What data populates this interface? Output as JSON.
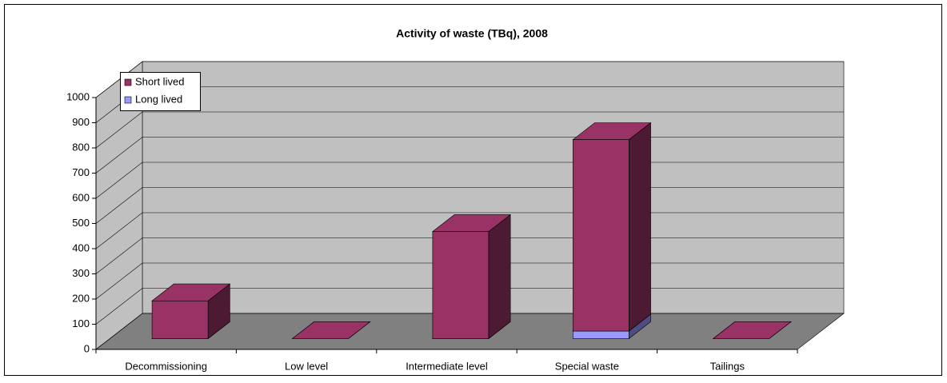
{
  "chart_data": {
    "type": "bar3d_stacked",
    "title": "Activity of waste (TBq), 2008",
    "categories": [
      "Decommissioning",
      "Low level",
      "Intermediate level",
      "Special waste",
      "Tailings"
    ],
    "series": [
      {
        "name": "Short lived",
        "color": "#993366",
        "values": [
          150,
          0,
          425,
          760,
          0
        ]
      },
      {
        "name": "Long lived",
        "color": "#9999ff",
        "values": [
          0,
          0,
          0,
          30,
          0
        ]
      }
    ],
    "ylim": [
      0,
      1000
    ],
    "yticks": [
      0,
      100,
      200,
      300,
      400,
      500,
      600,
      700,
      800,
      900,
      1000
    ],
    "grid": true,
    "legend": "top-left"
  }
}
